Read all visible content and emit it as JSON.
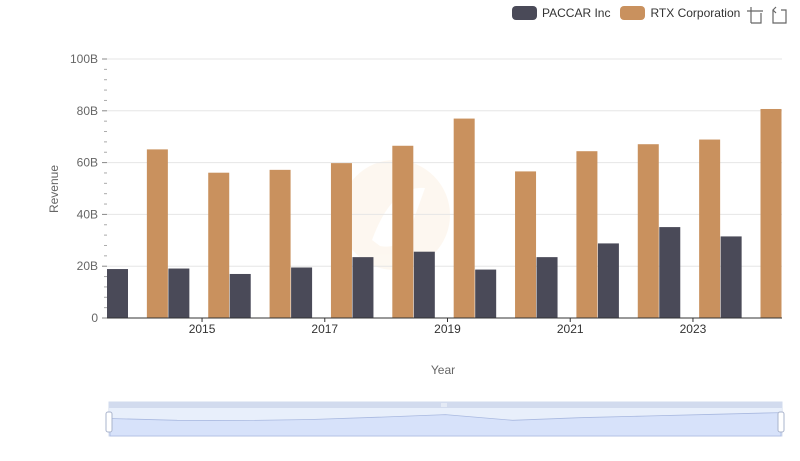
{
  "legend": {
    "items": [
      {
        "label": "PACCAR Inc",
        "color": "#4a4a58"
      },
      {
        "label": "RTX Corporation",
        "color": "#c9915e"
      }
    ]
  },
  "toolbox": {
    "icons": [
      "zoom-icon",
      "restore-icon"
    ]
  },
  "chart_data": {
    "type": "bar",
    "x": [
      2014,
      2015,
      2016,
      2017,
      2018,
      2019,
      2020,
      2021,
      2022,
      2023,
      2024
    ],
    "x_tick_labels": [
      "2015",
      "2017",
      "2019",
      "2021",
      "2023"
    ],
    "y_tick_labels": [
      "0",
      "20B",
      "40B",
      "60B",
      "80B",
      "100B"
    ],
    "ylim": [
      0,
      100000000000
    ],
    "xlabel": "Year",
    "ylabel": "Revenue",
    "grid": true,
    "legend_position": "top-right",
    "series": [
      {
        "name": "PACCAR Inc",
        "color": "#4a4a58",
        "values": [
          18900000000,
          19100000000,
          17000000000,
          19500000000,
          23500000000,
          25600000000,
          18700000000,
          23500000000,
          28800000000,
          35100000000,
          31500000000
        ]
      },
      {
        "name": "RTX Corporation",
        "color": "#c9915e",
        "values": [
          65100000000,
          56100000000,
          57200000000,
          59800000000,
          66500000000,
          77000000000,
          56600000000,
          64400000000,
          67100000000,
          68900000000,
          80700000000
        ]
      }
    ]
  }
}
